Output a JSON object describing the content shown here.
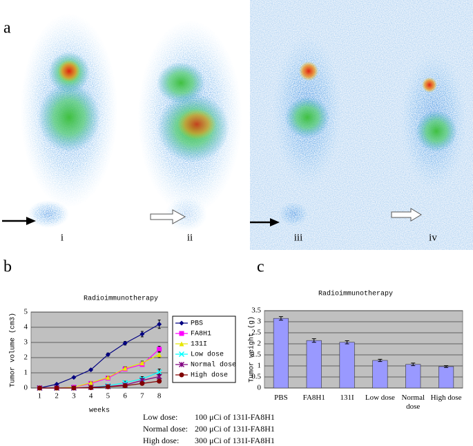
{
  "panel_labels": [
    "a",
    "b",
    "c"
  ],
  "image_labels": [
    "i",
    "ii",
    "iii",
    "iv"
  ],
  "chart_data": [
    {
      "type": "line",
      "title": "Radioimmunotherapy",
      "y_label": "Tumor volume (cm3)",
      "x_label": "weeks",
      "categories": [
        "1",
        "2",
        "3",
        "4",
        "5",
        "6",
        "7",
        "8"
      ],
      "ylim": [
        0,
        5
      ],
      "yticks": [
        0,
        1,
        2,
        3,
        4,
        5
      ],
      "grid": true,
      "legend": "right",
      "series": [
        {
          "name": "PBS",
          "color": "#000080",
          "marker": "diamond",
          "values": [
            0,
            0.25,
            0.7,
            1.2,
            2.2,
            2.95,
            3.55,
            4.2
          ],
          "errors": [
            0,
            0.03,
            0.05,
            0.06,
            0.1,
            0.12,
            0.18,
            0.28
          ]
        },
        {
          "name": "FA8H1",
          "color": "#ff00ff",
          "marker": "square",
          "values": [
            0,
            0,
            0.05,
            0.3,
            0.65,
            1.25,
            1.55,
            2.55
          ],
          "errors": [
            0,
            0,
            0.02,
            0.04,
            0.06,
            0.1,
            0.12,
            0.2
          ]
        },
        {
          "name": "131I",
          "color": "#e6e600",
          "marker": "triangle",
          "values": [
            0,
            0,
            0.05,
            0.35,
            0.7,
            1.3,
            1.65,
            2.2
          ],
          "errors": [
            0,
            0,
            0.02,
            0.04,
            0.06,
            0.1,
            0.12,
            0.2
          ]
        },
        {
          "name": "Low dose",
          "color": "#00ffff",
          "marker": "x",
          "values": [
            0,
            0,
            0,
            0.05,
            0.15,
            0.35,
            0.6,
            1.05
          ],
          "errors": [
            0,
            0,
            0,
            0.02,
            0.05,
            0.1,
            0.15,
            0.2
          ]
        },
        {
          "name": "Normal dose",
          "color": "#800080",
          "marker": "star",
          "values": [
            0,
            0,
            0,
            0.05,
            0.1,
            0.2,
            0.5,
            0.75
          ],
          "errors": [
            0,
            0,
            0,
            0.02,
            0.04,
            0.08,
            0.12,
            0.15
          ]
        },
        {
          "name": "High dose",
          "color": "#800000",
          "marker": "circle",
          "values": [
            0,
            0,
            0,
            0.02,
            0.08,
            0.15,
            0.3,
            0.45
          ],
          "errors": [
            0,
            0,
            0,
            0.01,
            0.03,
            0.05,
            0.08,
            0.1
          ]
        }
      ]
    },
    {
      "type": "bar",
      "title": "Radioimmunotherapy",
      "y_label": "Tumor weight (g)",
      "categories": [
        "PBS",
        "FA8H1",
        "131I",
        "Low dose",
        "Normal dose",
        "High dose"
      ],
      "values": [
        3.15,
        2.15,
        2.07,
        1.25,
        1.07,
        0.97
      ],
      "errors": [
        0.08,
        0.08,
        0.07,
        0.05,
        0.06,
        0.04
      ],
      "color": "#9999ff",
      "ylim": [
        0,
        3.5
      ],
      "yticks": [
        0,
        0.5,
        1,
        1.5,
        2,
        2.5,
        3,
        3.5
      ],
      "grid": true
    }
  ],
  "dose_notes": [
    {
      "label": "Low dose:",
      "value": "100 μCi of 131I-FA8H1"
    },
    {
      "label": "Normal dose:",
      "value": "200 μCi of 131I-FA8H1"
    },
    {
      "label": "High dose:",
      "value": "300 μCi of 131I-FA8H1"
    }
  ]
}
